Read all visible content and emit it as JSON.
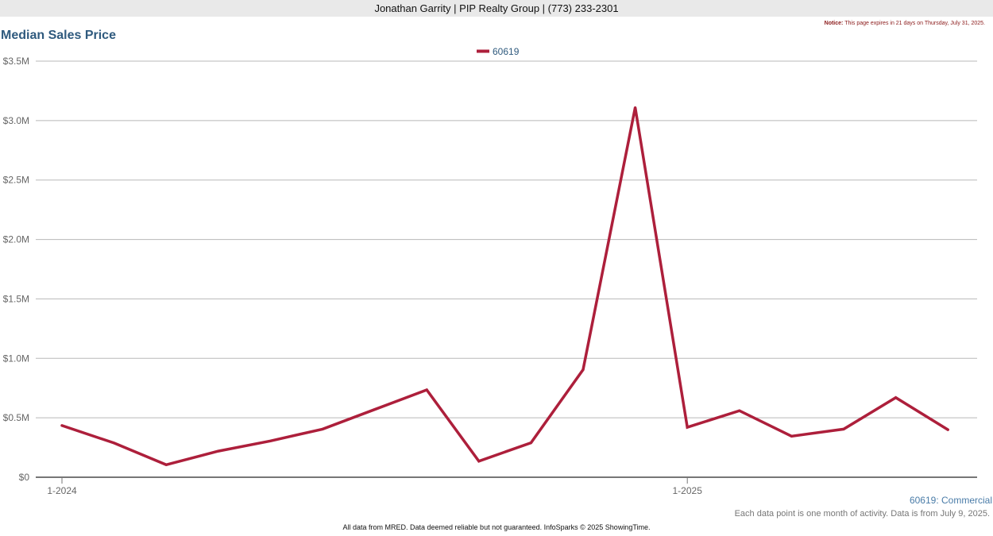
{
  "header": {
    "agent_line": "Jonathan Garrity | PIP Realty Group | (773) 233-2301"
  },
  "notice": {
    "label": "Notice:",
    "text": "This page expires in 21 days on Thursday, July 31, 2025."
  },
  "colors": {
    "series": "#ad1f3b",
    "title": "#2f5a7e",
    "grid": "#b8b8b8",
    "axis": "#777777"
  },
  "chart_data": {
    "type": "line",
    "title": "Median Sales Price",
    "subtitle": "60619: Commercial",
    "note": "Each data point is one month of activity. Data is from July 9, 2025.",
    "x": [
      "2024-01",
      "2024-02",
      "2024-03",
      "2024-04",
      "2024-05",
      "2024-06",
      "2024-07",
      "2024-08",
      "2024-09",
      "2024-10",
      "2024-11",
      "2024-12",
      "2025-01",
      "2025-02",
      "2025-03",
      "2025-04",
      "2025-05",
      "2025-06"
    ],
    "x_tick_labels": [
      {
        "index": 0,
        "label": "1-2024"
      },
      {
        "index": 12,
        "label": "1-2025"
      }
    ],
    "series": [
      {
        "name": "60619",
        "values": [
          435000,
          288000,
          105000,
          220000,
          305000,
          405000,
          570000,
          735000,
          135000,
          290000,
          905000,
          3110000,
          420000,
          560000,
          345000,
          405000,
          670000,
          400000
        ]
      }
    ],
    "y_ticks": [
      0,
      500000,
      1000000,
      1500000,
      2000000,
      2500000,
      3000000,
      3500000
    ],
    "y_tick_labels": [
      "$0",
      "$0.5M",
      "$1.0M",
      "$1.5M",
      "$2.0M",
      "$2.5M",
      "$3.0M",
      "$3.5M"
    ],
    "ylim": [
      0,
      3500000
    ],
    "grid": true,
    "legend_position": "top-center"
  },
  "footer": {
    "disclaimer": "All data from MRED. Data deemed reliable but not guaranteed. InfoSparks © 2025 ShowingTime."
  }
}
